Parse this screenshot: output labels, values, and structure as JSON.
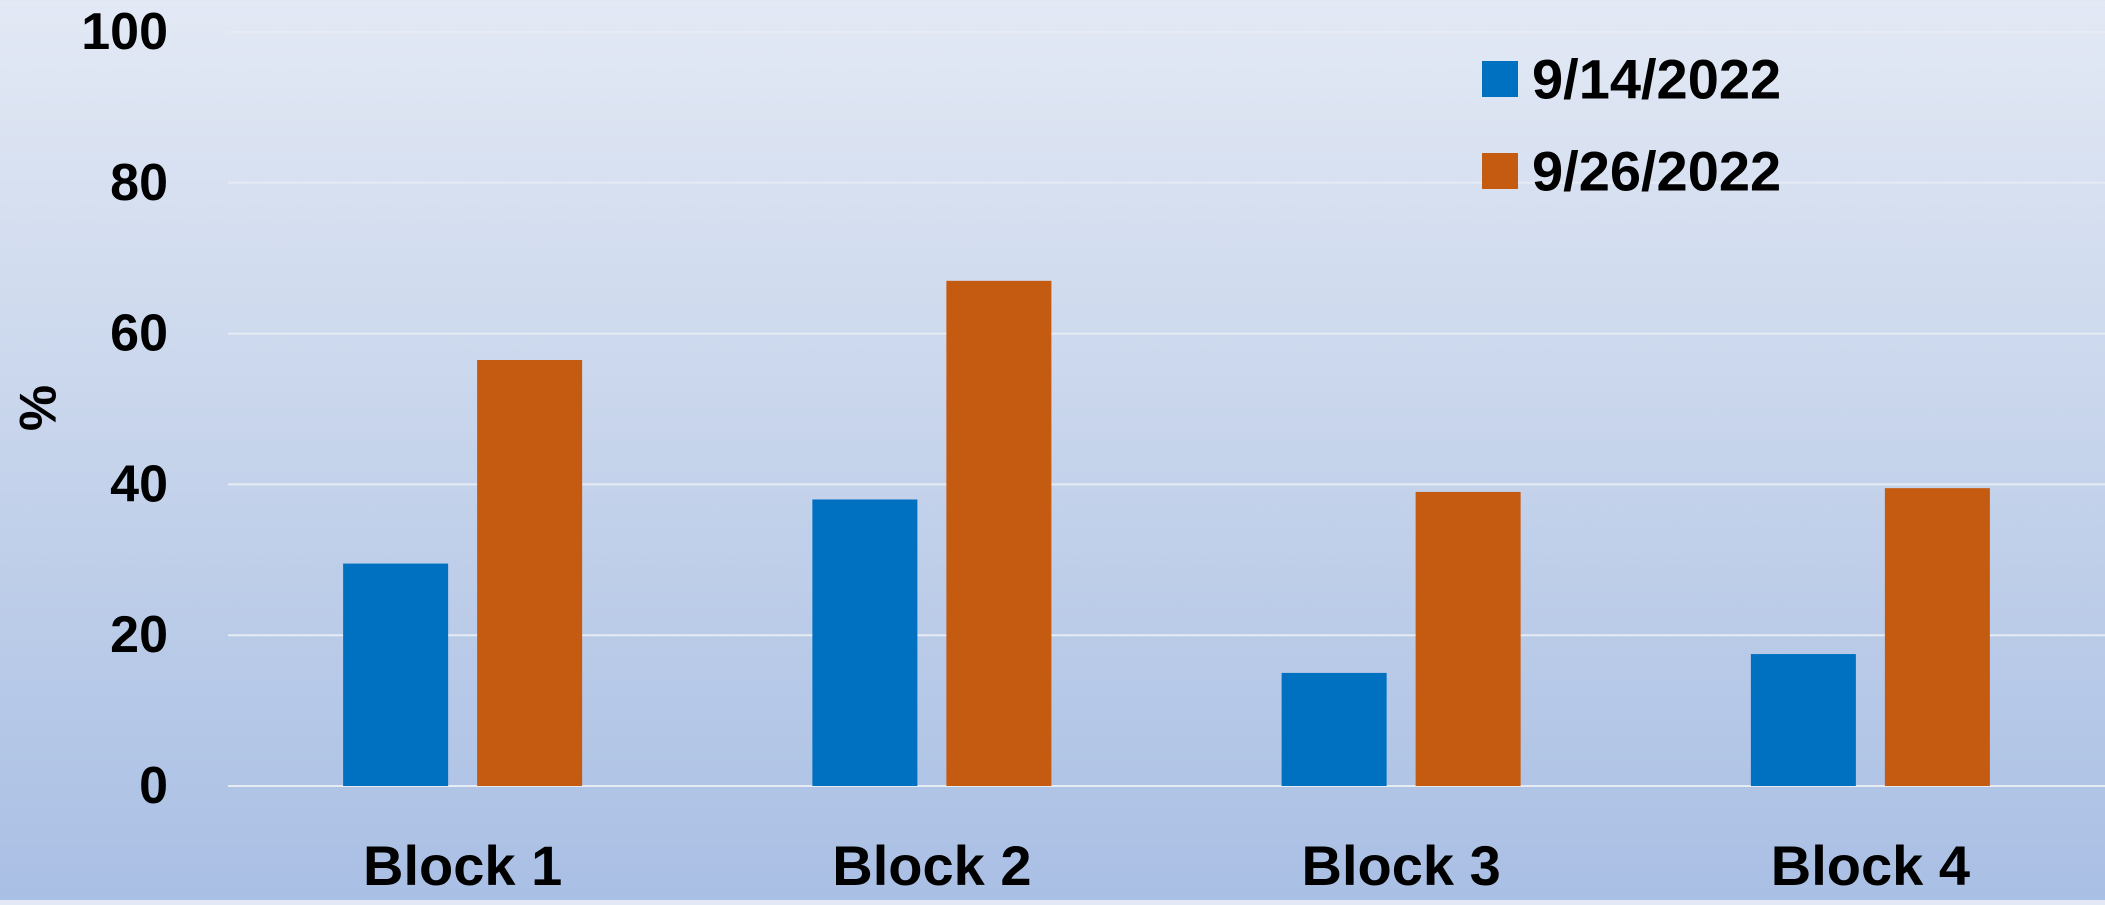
{
  "chart_data": {
    "type": "bar",
    "title": "",
    "xlabel": "",
    "ylabel": "%",
    "ylim": [
      0,
      100
    ],
    "yticks": [
      0,
      20,
      40,
      60,
      80,
      100
    ],
    "categories": [
      "Block 1",
      "Block 2",
      "Block 3",
      "Block 4"
    ],
    "series": [
      {
        "name": "9/14/2022",
        "color": "#0070c0",
        "values": [
          29.5,
          38,
          15,
          17.5
        ]
      },
      {
        "name": "9/26/2022",
        "color": "#c55a11",
        "values": [
          56.5,
          67,
          39,
          39.5
        ]
      }
    ],
    "grid": true,
    "gridline_color": "#e6ebf4",
    "legend_position": "top-right"
  }
}
